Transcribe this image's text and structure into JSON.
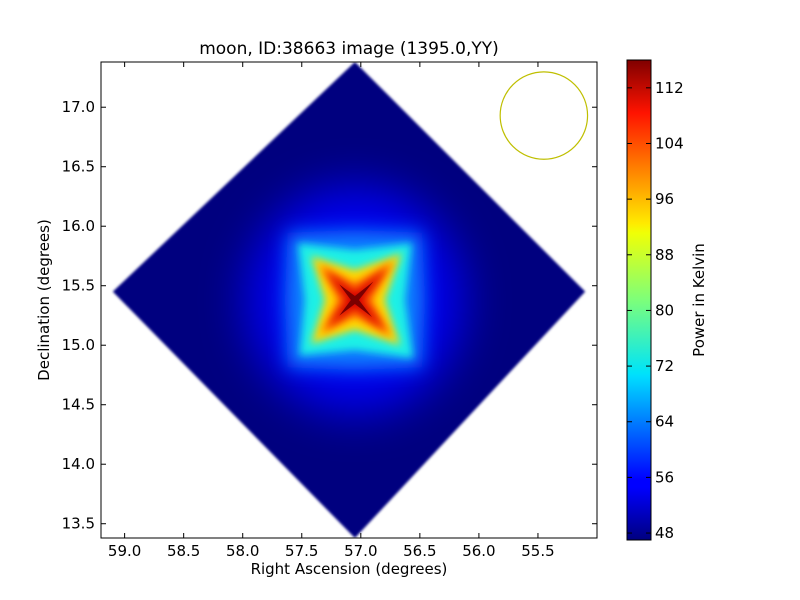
{
  "chart_data": {
    "type": "heatmap",
    "title": "moon, ID:38663 image (1395.0,YY)",
    "xlabel": "Right Ascension (degrees)",
    "ylabel": "Declination (degrees)",
    "xlim": [
      59.2,
      55.0
    ],
    "ylim": [
      13.38,
      17.38
    ],
    "x_ticks": [
      59.0,
      58.5,
      58.0,
      57.5,
      57.0,
      56.5,
      56.0,
      55.5
    ],
    "x_tick_labels": [
      "59.0",
      "58.5",
      "58.0",
      "57.5",
      "57.0",
      "56.5",
      "56.0",
      "55.5"
    ],
    "y_ticks": [
      13.5,
      14.0,
      14.5,
      15.0,
      15.5,
      16.0,
      16.5,
      17.0
    ],
    "y_tick_labels": [
      "13.5",
      "14.0",
      "14.5",
      "15.0",
      "15.5",
      "16.0",
      "16.5",
      "17.0"
    ],
    "colorbar": {
      "label": "Power in Kelvin",
      "range": [
        47,
        116
      ],
      "ticks": [
        48,
        56,
        64,
        72,
        80,
        88,
        96,
        104,
        112
      ],
      "tick_labels": [
        "48",
        "56",
        "64",
        "72",
        "80",
        "88",
        "96",
        "104",
        "112"
      ],
      "colormap": "jet"
    },
    "background_value": 48,
    "peak": {
      "ra": 57.05,
      "dec": 15.38,
      "value": 114
    },
    "footprint_corners": [
      {
        "ra": 57.05,
        "dec": 17.38
      },
      {
        "ra": 55.1,
        "dec": 15.45
      },
      {
        "ra": 57.05,
        "dec": 13.38
      },
      {
        "ra": 59.1,
        "dec": 15.45
      }
    ],
    "beam_circle": {
      "ra": 55.45,
      "dec": 16.93,
      "radius_deg": 0.37,
      "color": "#bfbf00"
    },
    "grid": false
  }
}
